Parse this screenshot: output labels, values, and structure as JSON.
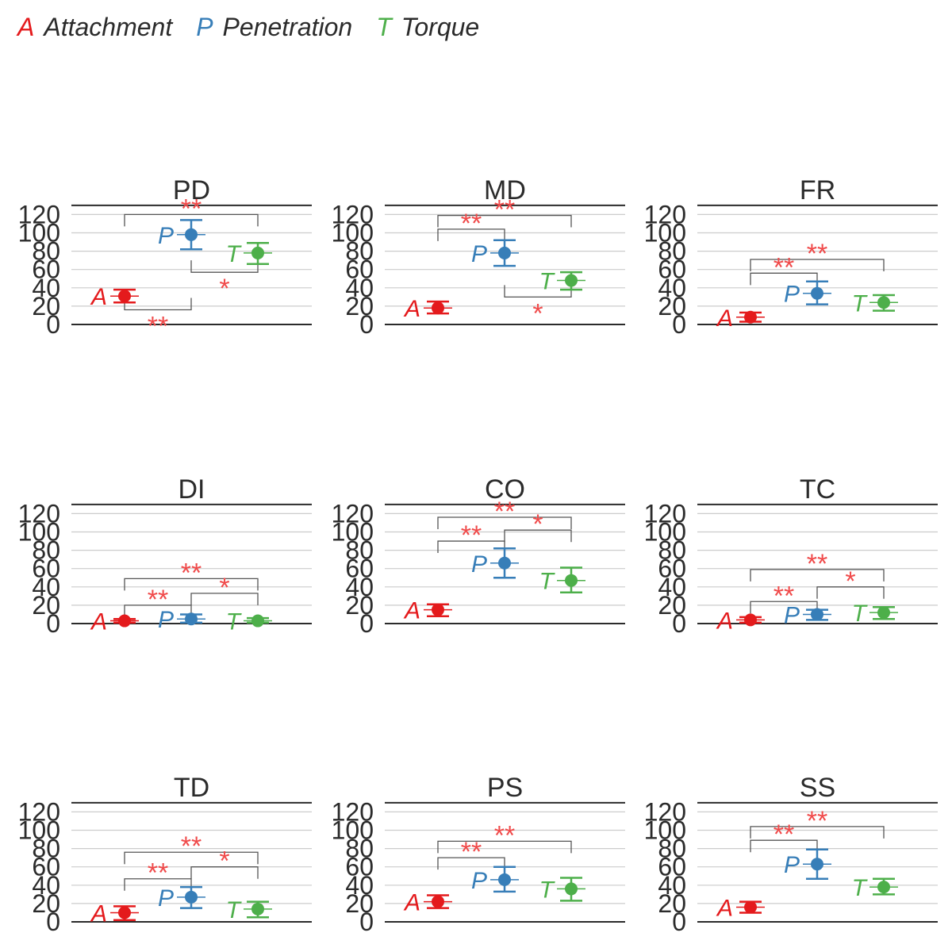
{
  "legend": [
    {
      "letter": "A",
      "label": "Attachment",
      "color": "#e41a1c"
    },
    {
      "letter": "P",
      "label": "Penetration",
      "color": "#377eb8"
    },
    {
      "letter": "T",
      "label": "Torque",
      "color": "#4daf4a"
    }
  ],
  "colors": {
    "A": "#e41a1c",
    "P": "#377eb8",
    "T": "#4daf4a",
    "significance": "#f04a4a",
    "axis": "#2b2b2b",
    "grid": "#cccccc"
  },
  "chart_data": [
    {
      "type": "errorbar",
      "title": "PD",
      "ylim": [
        0,
        130
      ],
      "yticks": [
        0,
        20,
        40,
        60,
        80,
        100,
        120
      ],
      "points": [
        {
          "group": "A",
          "mean": 31,
          "low": 24,
          "high": 38
        },
        {
          "group": "P",
          "mean": 98,
          "low": 82,
          "high": 114
        },
        {
          "group": "T",
          "mean": 78,
          "low": 66,
          "high": 89
        }
      ],
      "brackets": [
        {
          "from": "A",
          "to": "T",
          "level": 120,
          "stars": "**",
          "dir": "down"
        },
        {
          "from": "P",
          "to": "T",
          "level": 57,
          "stars": "*",
          "dir": "up"
        },
        {
          "from": "A",
          "to": "P",
          "level": 16,
          "stars": "**",
          "dir": "up"
        }
      ]
    },
    {
      "type": "errorbar",
      "title": "MD",
      "ylim": [
        0,
        130
      ],
      "yticks": [
        0,
        20,
        40,
        60,
        80,
        100,
        120
      ],
      "points": [
        {
          "group": "A",
          "mean": 18,
          "low": 12,
          "high": 25
        },
        {
          "group": "P",
          "mean": 78,
          "low": 64,
          "high": 92
        },
        {
          "group": "T",
          "mean": 48,
          "low": 38,
          "high": 57
        }
      ],
      "brackets": [
        {
          "from": "A",
          "to": "T",
          "level": 119,
          "stars": "**",
          "dir": "down"
        },
        {
          "from": "A",
          "to": "P",
          "level": 104,
          "stars": "**",
          "dir": "down"
        },
        {
          "from": "P",
          "to": "T",
          "level": 30,
          "stars": "*",
          "dir": "up"
        }
      ]
    },
    {
      "type": "errorbar",
      "title": "FR",
      "ylim": [
        0,
        130
      ],
      "yticks": [
        0,
        20,
        40,
        60,
        80,
        100,
        120
      ],
      "points": [
        {
          "group": "A",
          "mean": 8,
          "low": 3,
          "high": 13
        },
        {
          "group": "P",
          "mean": 34,
          "low": 22,
          "high": 47
        },
        {
          "group": "T",
          "mean": 24,
          "low": 15,
          "high": 32
        }
      ],
      "brackets": [
        {
          "from": "A",
          "to": "T",
          "level": 71,
          "stars": "**",
          "dir": "down"
        },
        {
          "from": "A",
          "to": "P",
          "level": 56,
          "stars": "**",
          "dir": "down"
        }
      ]
    },
    {
      "type": "errorbar",
      "title": "DI",
      "ylim": [
        0,
        130
      ],
      "yticks": [
        0,
        20,
        40,
        60,
        80,
        100,
        120
      ],
      "points": [
        {
          "group": "A",
          "mean": 3,
          "low": 1,
          "high": 5
        },
        {
          "group": "P",
          "mean": 5,
          "low": 1,
          "high": 10
        },
        {
          "group": "T",
          "mean": 3,
          "low": 1,
          "high": 6
        }
      ],
      "brackets": [
        {
          "from": "A",
          "to": "T",
          "level": 49,
          "stars": "**",
          "dir": "down"
        },
        {
          "from": "P",
          "to": "T",
          "level": 33,
          "stars": "*",
          "dir": "down"
        },
        {
          "from": "A",
          "to": "P",
          "level": 20,
          "stars": "**",
          "dir": "down"
        }
      ]
    },
    {
      "type": "errorbar",
      "title": "CO",
      "ylim": [
        0,
        130
      ],
      "yticks": [
        0,
        20,
        40,
        60,
        80,
        100,
        120
      ],
      "points": [
        {
          "group": "A",
          "mean": 15,
          "low": 8,
          "high": 21
        },
        {
          "group": "P",
          "mean": 66,
          "low": 50,
          "high": 82
        },
        {
          "group": "T",
          "mean": 47,
          "low": 34,
          "high": 61
        }
      ],
      "brackets": [
        {
          "from": "A",
          "to": "T",
          "level": 116,
          "stars": "**",
          "dir": "down"
        },
        {
          "from": "P",
          "to": "T",
          "level": 102,
          "stars": "*",
          "dir": "down"
        },
        {
          "from": "A",
          "to": "P",
          "level": 90,
          "stars": "**",
          "dir": "down"
        }
      ]
    },
    {
      "type": "errorbar",
      "title": "TC",
      "ylim": [
        0,
        130
      ],
      "yticks": [
        0,
        20,
        40,
        60,
        80,
        100,
        120
      ],
      "points": [
        {
          "group": "A",
          "mean": 4,
          "low": 1,
          "high": 7
        },
        {
          "group": "P",
          "mean": 10,
          "low": 4,
          "high": 15
        },
        {
          "group": "T",
          "mean": 12,
          "low": 5,
          "high": 18
        }
      ],
      "brackets": [
        {
          "from": "A",
          "to": "T",
          "level": 59,
          "stars": "**",
          "dir": "down"
        },
        {
          "from": "P",
          "to": "T",
          "level": 40,
          "stars": "*",
          "dir": "down"
        },
        {
          "from": "A",
          "to": "P",
          "level": 24,
          "stars": "**",
          "dir": "down"
        }
      ]
    },
    {
      "type": "errorbar",
      "title": "TD",
      "ylim": [
        0,
        130
      ],
      "yticks": [
        0,
        20,
        40,
        60,
        80,
        100,
        120
      ],
      "points": [
        {
          "group": "A",
          "mean": 10,
          "low": 2,
          "high": 17
        },
        {
          "group": "P",
          "mean": 27,
          "low": 15,
          "high": 38
        },
        {
          "group": "T",
          "mean": 14,
          "low": 5,
          "high": 22
        }
      ],
      "brackets": [
        {
          "from": "A",
          "to": "T",
          "level": 76,
          "stars": "**",
          "dir": "down"
        },
        {
          "from": "P",
          "to": "T",
          "level": 60,
          "stars": "*",
          "dir": "down"
        },
        {
          "from": "A",
          "to": "P",
          "level": 47,
          "stars": "**",
          "dir": "down"
        }
      ]
    },
    {
      "type": "errorbar",
      "title": "PS",
      "ylim": [
        0,
        130
      ],
      "yticks": [
        0,
        20,
        40,
        60,
        80,
        100,
        120
      ],
      "points": [
        {
          "group": "A",
          "mean": 22,
          "low": 15,
          "high": 29
        },
        {
          "group": "P",
          "mean": 46,
          "low": 33,
          "high": 60
        },
        {
          "group": "T",
          "mean": 36,
          "low": 23,
          "high": 48
        }
      ],
      "brackets": [
        {
          "from": "A",
          "to": "T",
          "level": 88,
          "stars": "**",
          "dir": "down"
        },
        {
          "from": "A",
          "to": "P",
          "level": 70,
          "stars": "**",
          "dir": "down"
        }
      ]
    },
    {
      "type": "errorbar",
      "title": "SS",
      "ylim": [
        0,
        130
      ],
      "yticks": [
        0,
        20,
        40,
        60,
        80,
        100,
        120
      ],
      "points": [
        {
          "group": "A",
          "mean": 16,
          "low": 10,
          "high": 22
        },
        {
          "group": "P",
          "mean": 63,
          "low": 47,
          "high": 79
        },
        {
          "group": "T",
          "mean": 38,
          "low": 30,
          "high": 47
        }
      ],
      "brackets": [
        {
          "from": "A",
          "to": "T",
          "level": 104,
          "stars": "**",
          "dir": "down"
        },
        {
          "from": "A",
          "to": "P",
          "level": 89,
          "stars": "**",
          "dir": "down"
        }
      ]
    }
  ]
}
